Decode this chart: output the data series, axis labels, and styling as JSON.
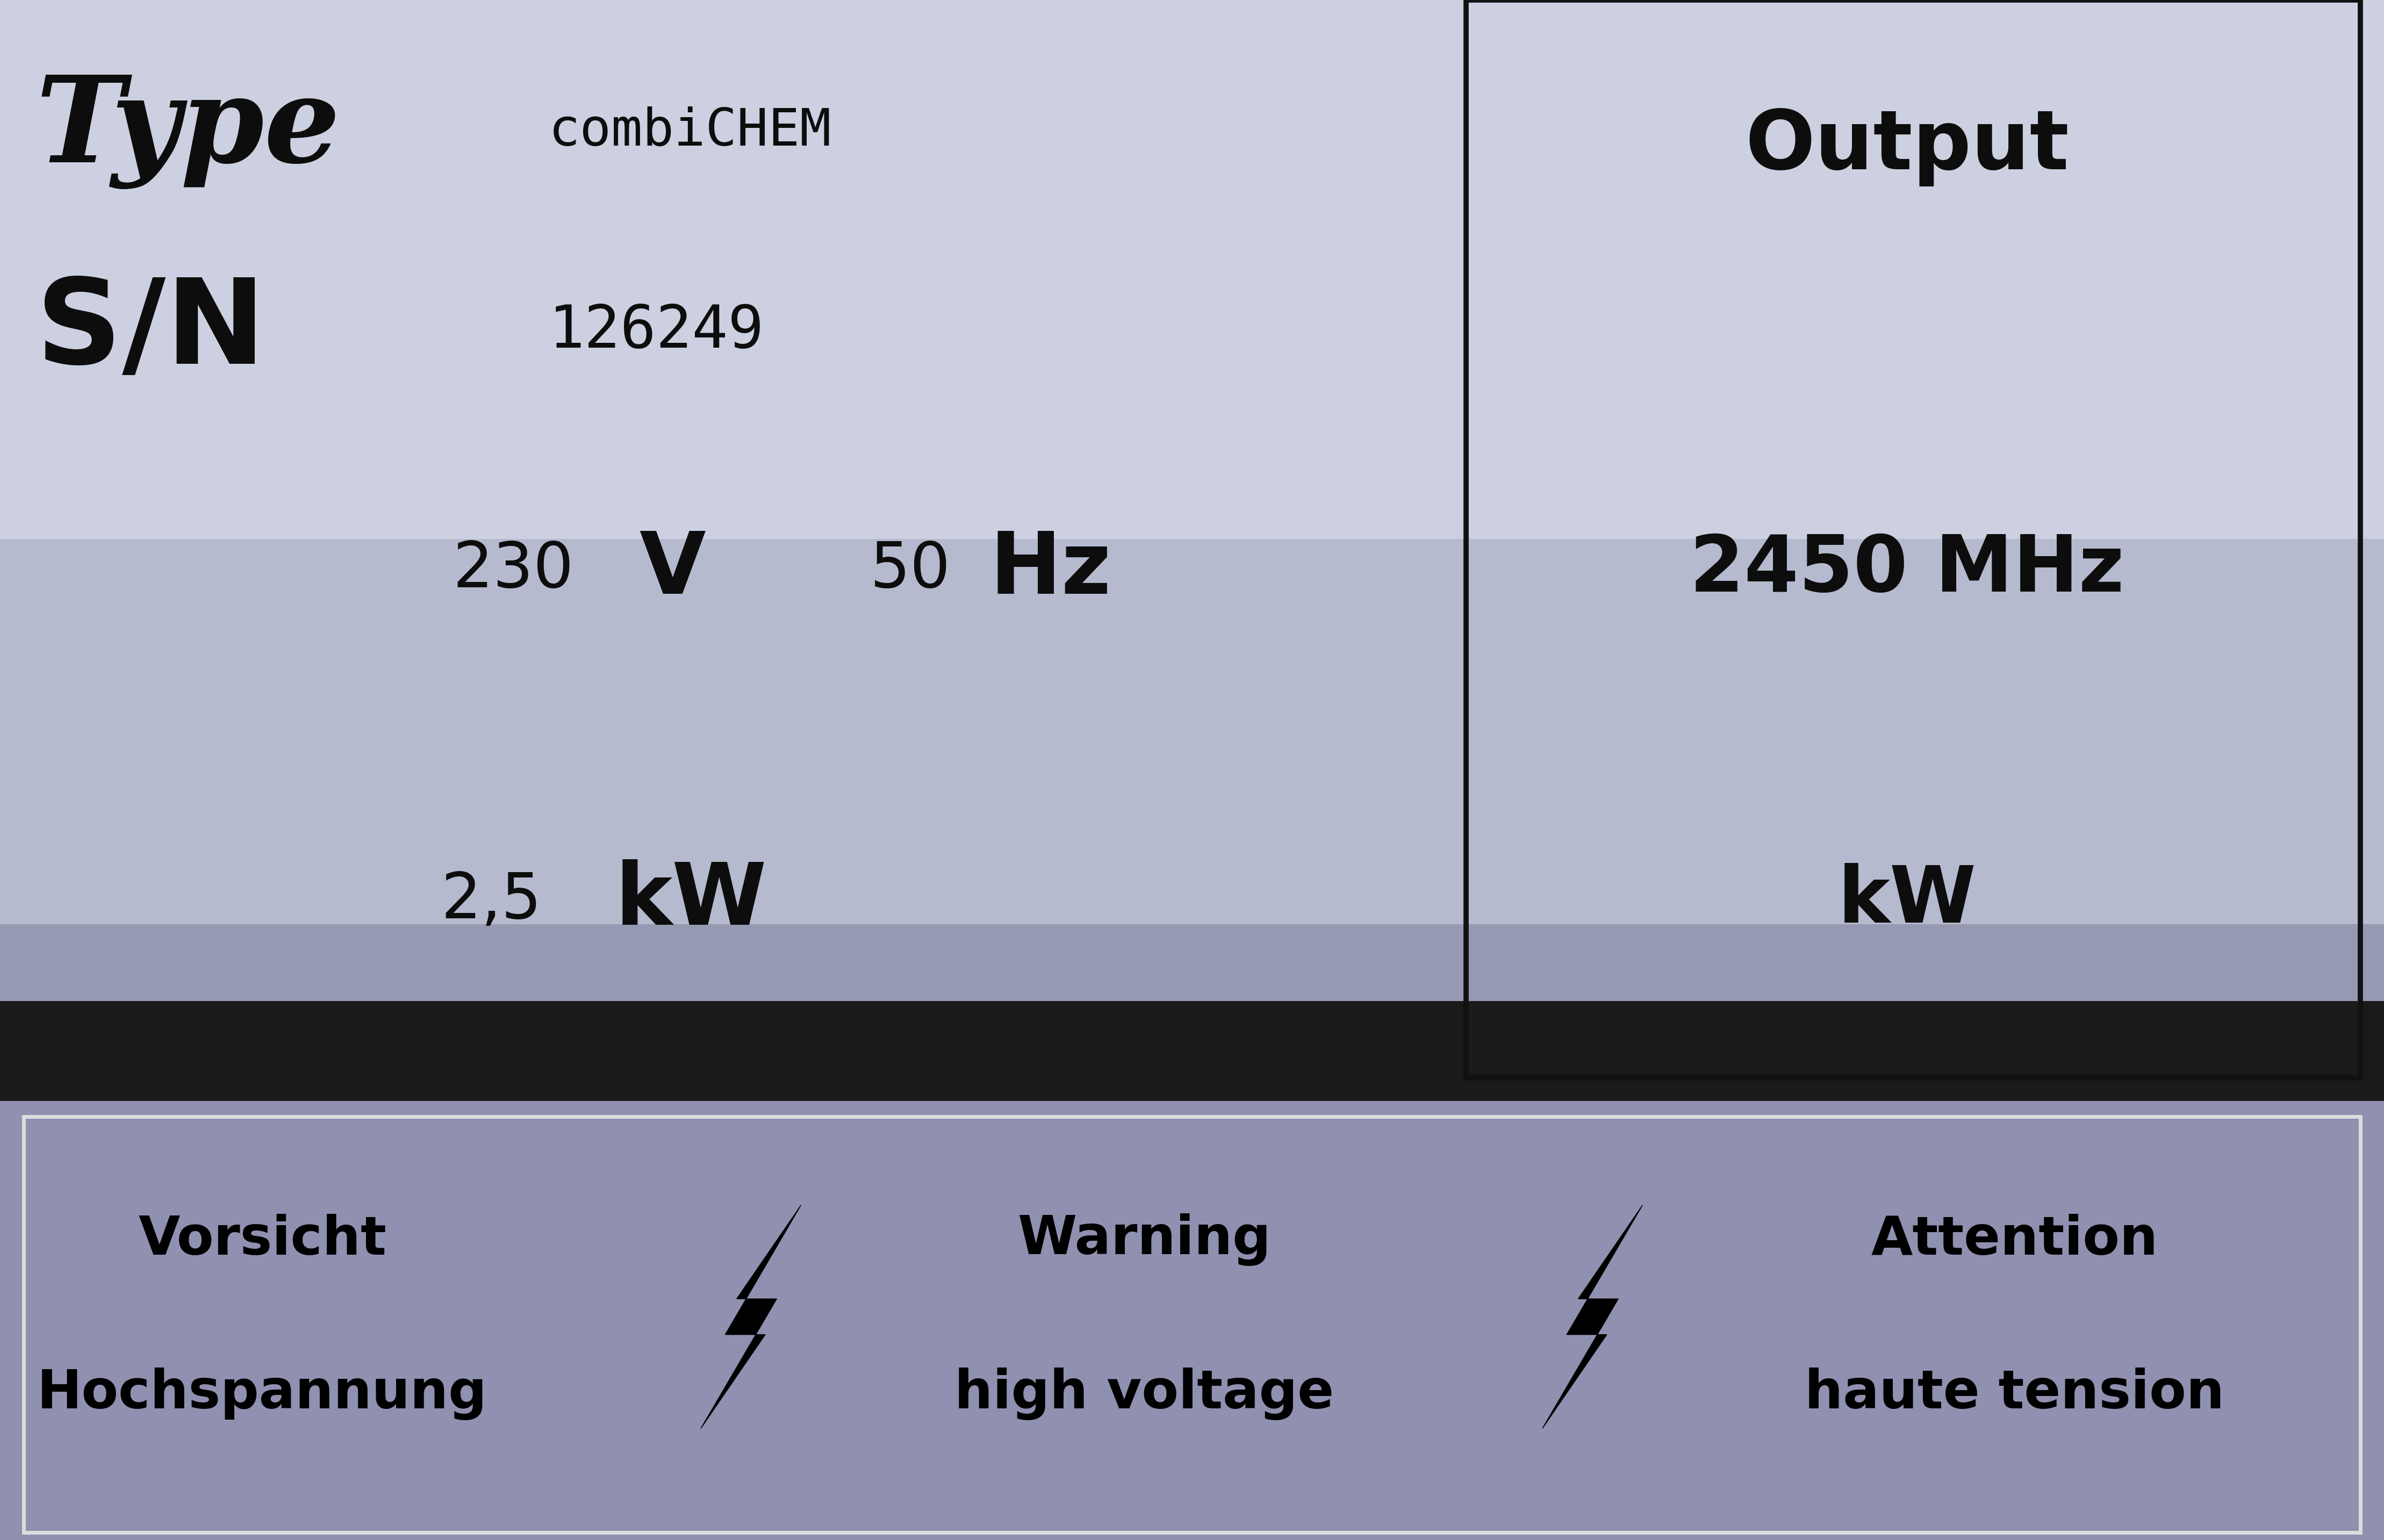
{
  "bg_color_light": "#cdd0e0",
  "bg_color_mid": "#9ea5c0",
  "bg_color_dark": "#8085a0",
  "black_bar_color": "#1a1a1a",
  "warning_bar_bg": "#9090b0",
  "warning_bar_border": "#222222",
  "text_color": "#0d0d0d",
  "type_label": "Type",
  "type_value": "combiCHEM",
  "sn_label": "S/N",
  "sn_value": "126249",
  "voltage": "230",
  "voltage_unit": "V",
  "freq_value": "50",
  "freq_unit": "Hz",
  "power_value": "2,5",
  "power_unit": "kW",
  "output_label": "Output",
  "output_value": "2450 MHz",
  "output_power_unit": "kW",
  "box_line_color": "#111111",
  "warning_de_1": "Vorsicht",
  "warning_de_2": "Hochspannung",
  "warning_en_1": "Warning",
  "warning_en_2": "high voltage",
  "warning_fr_1": "Attention",
  "warning_fr_2": "haute tension"
}
